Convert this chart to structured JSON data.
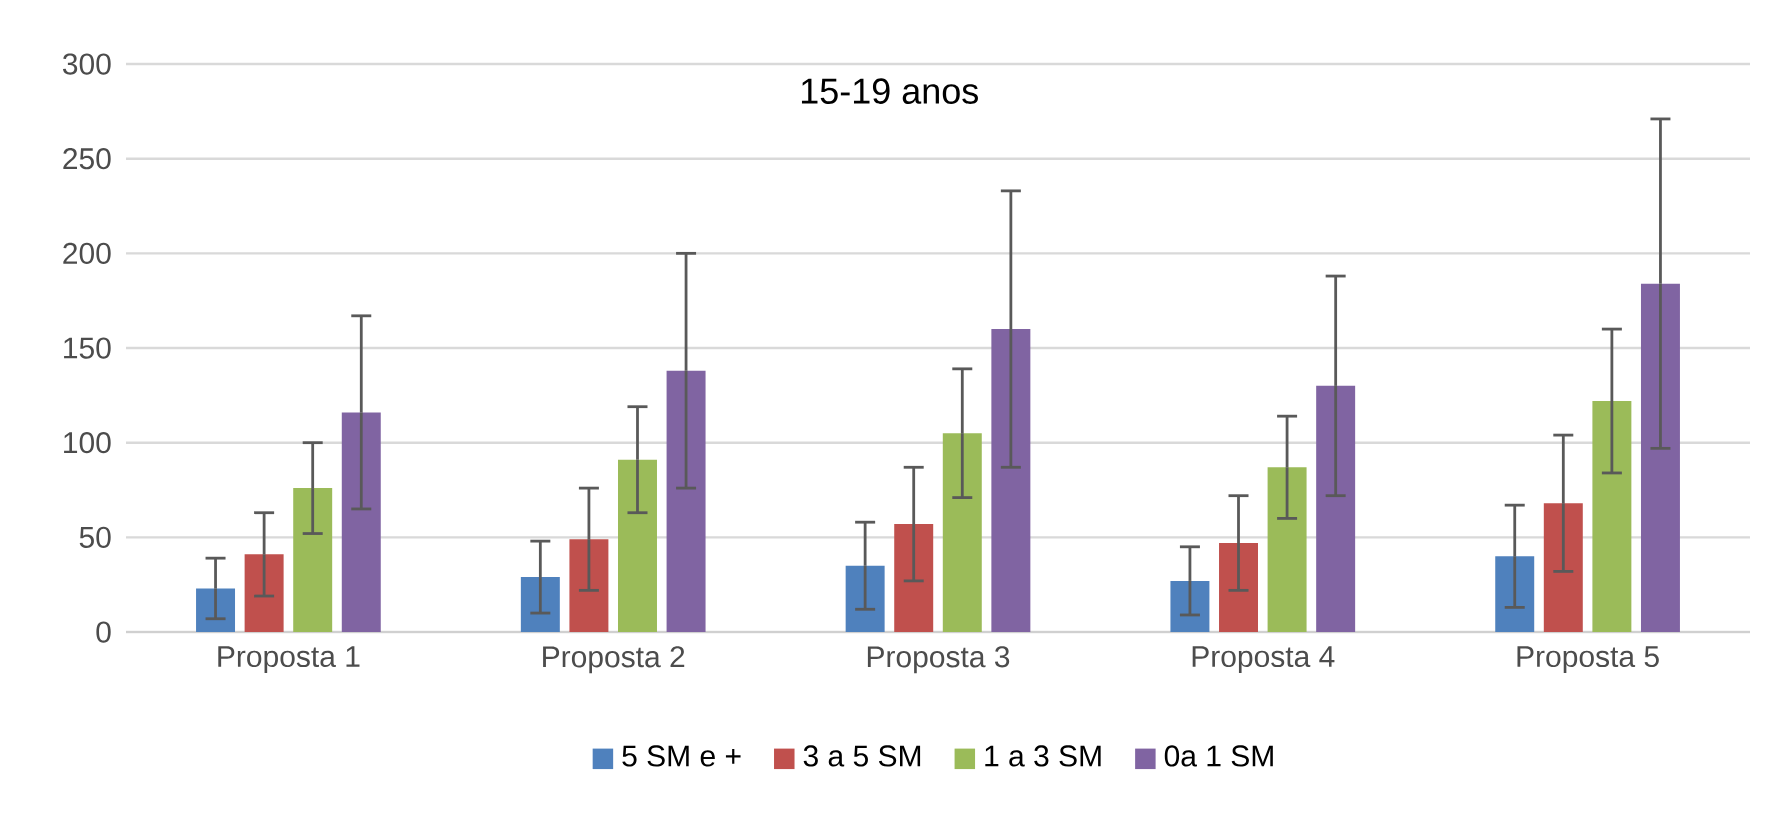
{
  "chart_data": {
    "type": "bar",
    "title": "15-19 anos",
    "categories": [
      "Proposta 1",
      "Proposta 2",
      "Proposta 3",
      "Proposta 4",
      "Proposta 5"
    ],
    "series": [
      {
        "name": "5 SM e +",
        "color": "#4f81bd",
        "values": [
          23,
          29,
          35,
          27,
          40
        ],
        "errors": [
          16,
          19,
          23,
          18,
          27
        ]
      },
      {
        "name": "3 a 5 SM",
        "color": "#c0504d",
        "values": [
          41,
          49,
          57,
          47,
          68
        ],
        "errors": [
          22,
          27,
          30,
          25,
          36
        ]
      },
      {
        "name": "1 a 3 SM",
        "color": "#9bbb59",
        "values": [
          76,
          91,
          105,
          87,
          122
        ],
        "errors": [
          24,
          28,
          34,
          27,
          38
        ]
      },
      {
        "name": "0a 1 SM",
        "color": "#8064a2",
        "values": [
          116,
          138,
          160,
          130,
          184
        ],
        "errors": [
          51,
          62,
          73,
          58,
          87
        ]
      }
    ],
    "ylim": [
      0,
      300
    ],
    "yticks": [
      0,
      50,
      100,
      150,
      200,
      250,
      300
    ],
    "grid": "y",
    "legend": "bottom"
  }
}
